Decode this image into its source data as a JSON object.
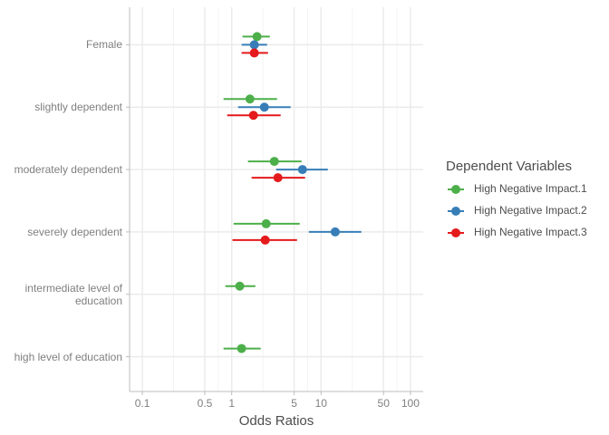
{
  "chart_data": {
    "type": "forest",
    "x_label": "Odds Ratios",
    "legend_title": "Dependent Variables",
    "categories": [
      "Female",
      "slightly dependent",
      "moderately dependent",
      "severely dependent",
      "intermediate level of\neducation",
      "high level of education"
    ],
    "xscale": "log",
    "xlim": [
      0.072,
      139
    ],
    "xticks": [
      0.1,
      0.5,
      1,
      5,
      10,
      50,
      100
    ],
    "grid": true,
    "legend_position": "right",
    "series": [
      {
        "name": "High Negative Impact.1",
        "color": "#4daf4a",
        "values": [
          1.92,
          1.6,
          3.0,
          2.43,
          1.23,
          1.29
        ],
        "lower": [
          1.32,
          0.81,
          1.52,
          1.05,
          0.85,
          0.81
        ],
        "upper": [
          2.67,
          3.22,
          6.05,
          5.77,
          1.84,
          2.11
        ]
      },
      {
        "name": "High Negative Impact.2",
        "color": "#377eb8",
        "values": [
          1.79,
          2.32,
          6.19,
          14.4,
          null,
          null
        ],
        "lower": [
          1.29,
          1.18,
          3.14,
          7.3,
          null,
          null
        ],
        "upper": [
          2.49,
          4.57,
          11.9,
          28.2,
          null,
          null
        ]
      },
      {
        "name": "High Negative Impact.3",
        "color": "#e41a1c",
        "values": [
          1.79,
          1.75,
          3.29,
          2.37,
          null,
          null
        ],
        "lower": [
          1.29,
          0.89,
          1.67,
          1.02,
          null,
          null
        ],
        "upper": [
          2.55,
          3.53,
          6.63,
          5.38,
          null,
          null
        ]
      }
    ]
  }
}
